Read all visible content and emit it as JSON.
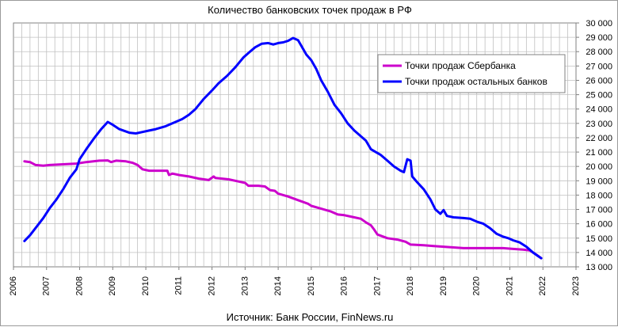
{
  "chart_data": {
    "type": "line",
    "title": "Количество банковских точек продаж в РФ",
    "source": "Источник: Банк России, FinNews.ru",
    "xlim": [
      2006,
      2023
    ],
    "ylim": [
      13000,
      30000
    ],
    "x_ticks": [
      "2006",
      "2007",
      "2008",
      "2009",
      "2010",
      "2011",
      "2012",
      "2013",
      "2014",
      "2015",
      "2016",
      "2017",
      "2018",
      "2019",
      "2020",
      "2021",
      "2022",
      "2023"
    ],
    "y_ticks": [
      "13 000",
      "14 000",
      "15 000",
      "16 000",
      "17 000",
      "18 000",
      "19 000",
      "20 000",
      "21 000",
      "22 000",
      "23 000",
      "24 000",
      "25 000",
      "26 000",
      "27 000",
      "28 000",
      "29 000",
      "30 000"
    ],
    "grid": true,
    "legend_position": "top-right",
    "series": [
      {
        "name": "Точки продаж Сбербанка",
        "color": "#cc00cc",
        "points": [
          [
            2006.33,
            20350
          ],
          [
            2006.5,
            20300
          ],
          [
            2006.67,
            20100
          ],
          [
            2006.9,
            20050
          ],
          [
            2007.1,
            20100
          ],
          [
            2007.5,
            20150
          ],
          [
            2007.9,
            20200
          ],
          [
            2008.2,
            20300
          ],
          [
            2008.6,
            20400
          ],
          [
            2008.85,
            20420
          ],
          [
            2008.95,
            20300
          ],
          [
            2009.1,
            20400
          ],
          [
            2009.4,
            20350
          ],
          [
            2009.6,
            20250
          ],
          [
            2009.75,
            20100
          ],
          [
            2009.9,
            19800
          ],
          [
            2010.1,
            19700
          ],
          [
            2010.5,
            19700
          ],
          [
            2010.65,
            19700
          ],
          [
            2010.7,
            19400
          ],
          [
            2010.8,
            19500
          ],
          [
            2011.0,
            19400
          ],
          [
            2011.3,
            19300
          ],
          [
            2011.6,
            19150
          ],
          [
            2011.9,
            19050
          ],
          [
            2012.05,
            19300
          ],
          [
            2012.1,
            19200
          ],
          [
            2012.5,
            19100
          ],
          [
            2012.8,
            18950
          ],
          [
            2013.0,
            18850
          ],
          [
            2013.1,
            18650
          ],
          [
            2013.4,
            18650
          ],
          [
            2013.6,
            18600
          ],
          [
            2013.75,
            18350
          ],
          [
            2013.9,
            18300
          ],
          [
            2014.0,
            18100
          ],
          [
            2014.3,
            17900
          ],
          [
            2014.6,
            17650
          ],
          [
            2014.9,
            17400
          ],
          [
            2015.0,
            17250
          ],
          [
            2015.3,
            17050
          ],
          [
            2015.6,
            16850
          ],
          [
            2015.8,
            16650
          ],
          [
            2016.0,
            16600
          ],
          [
            2016.3,
            16450
          ],
          [
            2016.5,
            16350
          ],
          [
            2016.65,
            16100
          ],
          [
            2016.8,
            15900
          ],
          [
            2016.9,
            15600
          ],
          [
            2017.0,
            15250
          ],
          [
            2017.3,
            15000
          ],
          [
            2017.6,
            14900
          ],
          [
            2017.85,
            14750
          ],
          [
            2018.0,
            14550
          ],
          [
            2018.4,
            14500
          ],
          [
            2018.7,
            14450
          ],
          [
            2019.0,
            14400
          ],
          [
            2019.3,
            14350
          ],
          [
            2019.6,
            14300
          ],
          [
            2019.9,
            14300
          ],
          [
            2020.2,
            14300
          ],
          [
            2020.5,
            14300
          ],
          [
            2020.8,
            14300
          ],
          [
            2021.1,
            14250
          ],
          [
            2021.4,
            14200
          ],
          [
            2021.6,
            14150
          ],
          [
            2021.8,
            13850
          ],
          [
            2021.95,
            13600
          ]
        ]
      },
      {
        "name": "Точки продаж остальных банков",
        "color": "#0000ff",
        "points": [
          [
            2006.33,
            14800
          ],
          [
            2006.5,
            15200
          ],
          [
            2006.7,
            15800
          ],
          [
            2006.9,
            16400
          ],
          [
            2007.1,
            17100
          ],
          [
            2007.3,
            17700
          ],
          [
            2007.5,
            18400
          ],
          [
            2007.7,
            19200
          ],
          [
            2007.9,
            19800
          ],
          [
            2008.0,
            20500
          ],
          [
            2008.2,
            21200
          ],
          [
            2008.45,
            22000
          ],
          [
            2008.65,
            22600
          ],
          [
            2008.85,
            23100
          ],
          [
            2009.0,
            22900
          ],
          [
            2009.2,
            22600
          ],
          [
            2009.5,
            22350
          ],
          [
            2009.7,
            22300
          ],
          [
            2009.9,
            22400
          ],
          [
            2010.1,
            22500
          ],
          [
            2010.3,
            22600
          ],
          [
            2010.6,
            22800
          ],
          [
            2010.9,
            23100
          ],
          [
            2011.1,
            23300
          ],
          [
            2011.3,
            23600
          ],
          [
            2011.5,
            24000
          ],
          [
            2011.75,
            24700
          ],
          [
            2012.0,
            25300
          ],
          [
            2012.2,
            25800
          ],
          [
            2012.45,
            26300
          ],
          [
            2012.7,
            26900
          ],
          [
            2012.95,
            27600
          ],
          [
            2013.1,
            27900
          ],
          [
            2013.3,
            28300
          ],
          [
            2013.5,
            28550
          ],
          [
            2013.7,
            28600
          ],
          [
            2013.85,
            28500
          ],
          [
            2014.0,
            28600
          ],
          [
            2014.15,
            28650
          ],
          [
            2014.3,
            28750
          ],
          [
            2014.45,
            28950
          ],
          [
            2014.6,
            28800
          ],
          [
            2014.7,
            28400
          ],
          [
            2014.85,
            27800
          ],
          [
            2015.0,
            27400
          ],
          [
            2015.15,
            26800
          ],
          [
            2015.3,
            26000
          ],
          [
            2015.5,
            25200
          ],
          [
            2015.7,
            24300
          ],
          [
            2015.9,
            23700
          ],
          [
            2016.1,
            23000
          ],
          [
            2016.3,
            22500
          ],
          [
            2016.5,
            22100
          ],
          [
            2016.65,
            21800
          ],
          [
            2016.8,
            21200
          ],
          [
            2016.95,
            21000
          ],
          [
            2017.1,
            20800
          ],
          [
            2017.3,
            20400
          ],
          [
            2017.5,
            20000
          ],
          [
            2017.7,
            19700
          ],
          [
            2017.8,
            19600
          ],
          [
            2017.9,
            20500
          ],
          [
            2018.0,
            20400
          ],
          [
            2018.05,
            19300
          ],
          [
            2018.2,
            18900
          ],
          [
            2018.4,
            18400
          ],
          [
            2018.6,
            17700
          ],
          [
            2018.75,
            17000
          ],
          [
            2018.9,
            16700
          ],
          [
            2019.0,
            16950
          ],
          [
            2019.1,
            16550
          ],
          [
            2019.3,
            16450
          ],
          [
            2019.6,
            16400
          ],
          [
            2019.8,
            16350
          ],
          [
            2020.0,
            16150
          ],
          [
            2020.2,
            16000
          ],
          [
            2020.4,
            15700
          ],
          [
            2020.6,
            15300
          ],
          [
            2020.8,
            15100
          ],
          [
            2020.95,
            15000
          ],
          [
            2021.1,
            14850
          ],
          [
            2021.3,
            14700
          ],
          [
            2021.5,
            14400
          ],
          [
            2021.7,
            14000
          ],
          [
            2021.85,
            13750
          ],
          [
            2021.95,
            13600
          ]
        ]
      }
    ]
  }
}
